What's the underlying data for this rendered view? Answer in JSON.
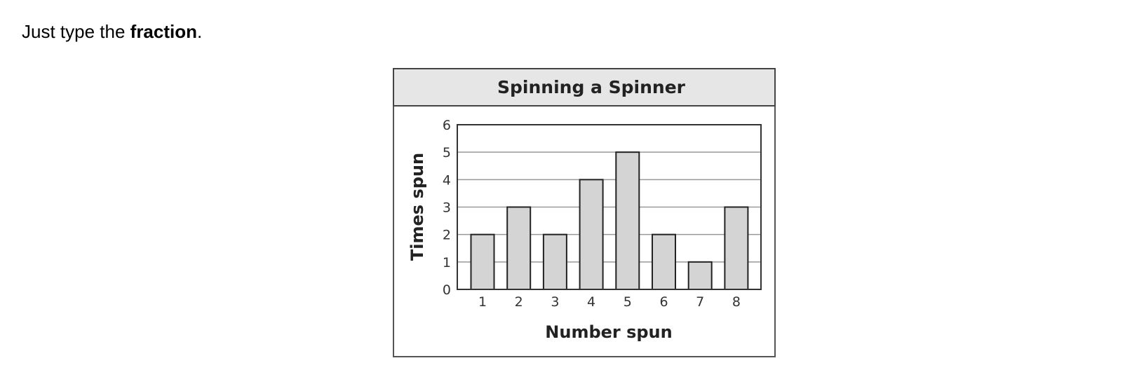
{
  "prompt": {
    "prefix": "Just type the ",
    "bold": "fraction",
    "suffix": "."
  },
  "chart_data": {
    "type": "bar",
    "title": "Spinning a Spinner",
    "xlabel": "Number spun",
    "ylabel": "Times spun",
    "categories": [
      "1",
      "2",
      "3",
      "4",
      "5",
      "6",
      "7",
      "8"
    ],
    "values": [
      2,
      3,
      2,
      4,
      5,
      2,
      1,
      3
    ],
    "ylim": [
      0,
      6
    ],
    "yticks": [
      "0",
      "1",
      "2",
      "3",
      "4",
      "5",
      "6"
    ],
    "grid": true,
    "colors": {
      "bar": "#d4d4d4",
      "header": "#e6e6e6",
      "border": "#333333"
    }
  }
}
